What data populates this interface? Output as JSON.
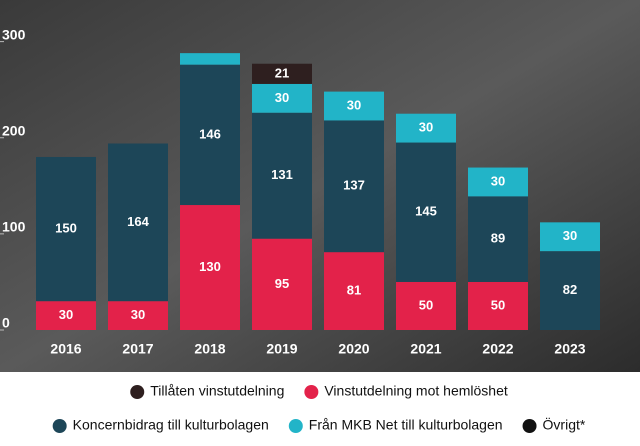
{
  "chart_data": {
    "type": "stacked-bar",
    "categories": [
      "2016",
      "2017",
      "2018",
      "2019",
      "2020",
      "2021",
      "2022",
      "2023"
    ],
    "series": [
      {
        "name": "Tillåten vinstutdelning",
        "color": "#2e1f1f",
        "values": [
          null,
          null,
          null,
          21,
          null,
          null,
          null,
          null
        ]
      },
      {
        "name": "Vinstutdelning mot hemlöshet",
        "color": "#e3224a",
        "values": [
          30,
          30,
          130,
          95,
          81,
          50,
          50,
          null
        ]
      },
      {
        "name": "Koncernbidrag till kulturbolagen",
        "color": "#1d4658",
        "values": [
          150,
          164,
          146,
          131,
          137,
          145,
          89,
          82
        ]
      },
      {
        "name": "Från MKB Net till kulturbolagen",
        "color": "#22b4c8",
        "values": [
          null,
          null,
          12,
          30,
          30,
          30,
          30,
          30
        ]
      },
      {
        "name": "Övrigt*",
        "color": "#111111",
        "values": [
          null,
          null,
          null,
          null,
          null,
          null,
          null,
          null
        ]
      }
    ],
    "ylim": [
      0,
      310
    ],
    "yticks": [
      0,
      100,
      200,
      300
    ]
  }
}
